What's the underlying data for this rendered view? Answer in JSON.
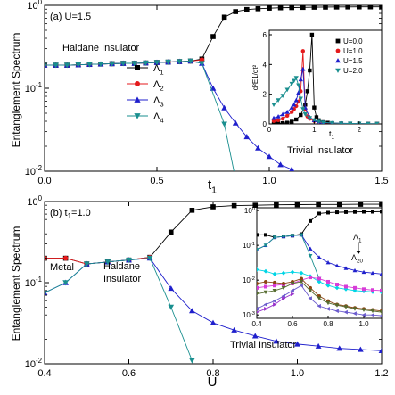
{
  "figure": {
    "ylabel": "Entanglement Spectrum"
  },
  "chart_data": [
    {
      "type": "line",
      "panel_label": "(a) U=1.5",
      "xlabel": "t",
      "xlabel_sub": "1",
      "ylabel": "Entanglement Spectrum",
      "yscale": "log",
      "xlim": [
        0.0,
        1.5
      ],
      "ylim": [
        0.01,
        1.0
      ],
      "xticks": [
        "0.0",
        "0.5",
        "1.0",
        "1.5"
      ],
      "yticks": [
        "10-2",
        "10-1",
        "100"
      ],
      "legend_position": "center",
      "region_labels": [
        "Haldane Insulator",
        "Trivial Insulator"
      ],
      "series": [
        {
          "name": "Λ1",
          "marker": "square",
          "color": "#000000",
          "x": [
            0.0,
            0.05,
            0.1,
            0.15,
            0.2,
            0.25,
            0.3,
            0.35,
            0.4,
            0.45,
            0.5,
            0.55,
            0.6,
            0.65,
            0.7,
            0.75,
            0.8,
            0.85,
            0.9,
            0.95,
            1.0,
            1.05,
            1.1,
            1.15,
            1.2,
            1.25,
            1.3,
            1.35,
            1.4,
            1.45,
            1.5
          ],
          "y": [
            0.19,
            0.19,
            0.19,
            0.192,
            0.194,
            0.196,
            0.198,
            0.2,
            0.2,
            0.202,
            0.205,
            0.207,
            0.21,
            0.213,
            0.225,
            0.42,
            0.72,
            0.84,
            0.89,
            0.91,
            0.925,
            0.935,
            0.94,
            0.945,
            0.95,
            0.952,
            0.955,
            0.957,
            0.958,
            0.959,
            0.96
          ]
        },
        {
          "name": "Λ2",
          "marker": "circle",
          "color": "#e41a1c",
          "x": [
            0.0,
            0.05,
            0.1,
            0.15,
            0.2,
            0.25,
            0.3,
            0.35,
            0.4,
            0.45,
            0.5,
            0.55,
            0.6,
            0.65,
            0.7
          ],
          "y": [
            0.19,
            0.19,
            0.19,
            0.192,
            0.194,
            0.196,
            0.198,
            0.2,
            0.2,
            0.202,
            0.205,
            0.207,
            0.21,
            0.213,
            0.22
          ]
        },
        {
          "name": "Λ3",
          "marker": "triangle-up",
          "color": "#1f1fcc",
          "x": [
            0.0,
            0.05,
            0.1,
            0.15,
            0.2,
            0.25,
            0.3,
            0.35,
            0.4,
            0.45,
            0.5,
            0.55,
            0.6,
            0.65,
            0.7,
            0.75,
            0.8,
            0.85,
            0.9,
            0.95,
            1.0,
            1.05,
            1.1
          ],
          "y": [
            0.19,
            0.19,
            0.19,
            0.192,
            0.194,
            0.196,
            0.198,
            0.2,
            0.2,
            0.202,
            0.205,
            0.207,
            0.21,
            0.213,
            0.2,
            0.1,
            0.058,
            0.038,
            0.026,
            0.019,
            0.015,
            0.012,
            0.0105
          ]
        },
        {
          "name": "Λ4",
          "marker": "triangle-down",
          "color": "#1a8f8f",
          "x": [
            0.0,
            0.05,
            0.1,
            0.15,
            0.2,
            0.25,
            0.3,
            0.35,
            0.4,
            0.45,
            0.5,
            0.55,
            0.6,
            0.65,
            0.7,
            0.8,
            0.85
          ],
          "y": [
            0.19,
            0.19,
            0.19,
            0.192,
            0.194,
            0.196,
            0.198,
            0.2,
            0.2,
            0.202,
            0.205,
            0.207,
            0.21,
            0.213,
            0.2,
            0.037,
            0.008
          ]
        }
      ],
      "inset": {
        "type": "line",
        "xlim": [
          0,
          2.5
        ],
        "ylim": [
          0,
          6.3
        ],
        "xticks": [
          "0",
          "1",
          "2"
        ],
        "yticks": [
          "0",
          "2",
          "4",
          "6"
        ],
        "xlabel": "t",
        "xlabel_sub": "1",
        "ylabel": "d²E1/dt²",
        "series": [
          {
            "name": "U=0.0",
            "marker": "square",
            "color": "#000000",
            "x": [
              0.1,
              0.2,
              0.3,
              0.4,
              0.5,
              0.6,
              0.7,
              0.8,
              0.85,
              0.9,
              0.95,
              1.0,
              1.05,
              1.1,
              1.2,
              1.3,
              1.4,
              1.6,
              1.8,
              2.0,
              2.2,
              2.4
            ],
            "y": [
              0.02,
              0.03,
              0.05,
              0.08,
              0.15,
              0.3,
              0.6,
              1.3,
              2.2,
              3.6,
              6.0,
              1.1,
              0.45,
              0.25,
              0.12,
              0.08,
              0.05,
              0.03,
              0.02,
              0.015,
              0.01,
              0.01
            ]
          },
          {
            "name": "U=1.0",
            "marker": "circle",
            "color": "#e41a1c",
            "x": [
              0.1,
              0.2,
              0.3,
              0.4,
              0.5,
              0.55,
              0.6,
              0.65,
              0.7,
              0.75,
              0.8,
              0.85,
              0.9,
              1.0,
              1.1,
              1.2,
              1.4,
              1.6,
              1.8,
              2.0,
              2.2,
              2.4
            ],
            "y": [
              0.2,
              0.25,
              0.35,
              0.55,
              0.8,
              1.0,
              1.2,
              1.5,
              2.2,
              4.9,
              1.0,
              0.5,
              0.35,
              0.2,
              0.12,
              0.08,
              0.05,
              0.03,
              0.02,
              0.02,
              0.01,
              0.01
            ]
          },
          {
            "name": "U=1.5",
            "marker": "triangle-up",
            "color": "#1f1fcc",
            "x": [
              0.1,
              0.2,
              0.3,
              0.4,
              0.5,
              0.55,
              0.6,
              0.65,
              0.7,
              0.75,
              0.8,
              0.9,
              1.0,
              1.1,
              1.2,
              1.4,
              1.6,
              1.8,
              2.0,
              2.2,
              2.4
            ],
            "y": [
              0.4,
              0.5,
              0.65,
              0.8,
              1.1,
              1.3,
              1.6,
              2.1,
              3.0,
              3.7,
              1.1,
              0.45,
              0.25,
              0.15,
              0.1,
              0.06,
              0.04,
              0.03,
              0.02,
              0.01,
              0.01
            ]
          },
          {
            "name": "U=2.0",
            "marker": "triangle-down",
            "color": "#1a8f8f",
            "x": [
              0.1,
              0.2,
              0.3,
              0.4,
              0.5,
              0.55,
              0.6,
              0.65,
              0.7,
              0.75,
              0.8,
              0.9,
              1.0,
              1.1,
              1.2,
              1.4,
              1.6,
              1.8,
              2.0,
              2.2,
              2.4
            ],
            "y": [
              1.3,
              1.6,
              1.9,
              2.3,
              2.7,
              2.9,
              3.1,
              2.6,
              1.7,
              1.0,
              0.65,
              0.4,
              0.25,
              0.15,
              0.1,
              0.06,
              0.04,
              0.03,
              0.02,
              0.01,
              0.01
            ]
          }
        ]
      }
    },
    {
      "type": "line",
      "panel_label": "(b) t1=1.0",
      "xlabel": "U",
      "ylabel": "Entanglement Spectrum",
      "yscale": "log",
      "xlim": [
        0.4,
        1.2
      ],
      "ylim": [
        0.01,
        1.0
      ],
      "xticks": [
        "0.4",
        "0.6",
        "0.8",
        "1.0",
        "1.2"
      ],
      "yticks": [
        "10-2",
        "10-1",
        "100"
      ],
      "region_labels": [
        "Metal",
        "Haldane",
        "Insulator",
        "Trivial Insulator"
      ],
      "series": [
        {
          "name": "Λ1",
          "marker": "square",
          "color": "#000000",
          "x": [
            0.4,
            0.45,
            0.5,
            0.55,
            0.6,
            0.65,
            0.7,
            0.75,
            0.8,
            0.85,
            0.9,
            0.95,
            1.0,
            1.05,
            1.1,
            1.15,
            1.2
          ],
          "y": [
            0.2,
            0.2,
            0.17,
            0.18,
            0.19,
            0.205,
            0.42,
            0.78,
            0.86,
            0.89,
            0.9,
            0.91,
            0.915,
            0.92,
            0.92,
            0.925,
            0.925
          ]
        },
        {
          "name": "Λ2",
          "marker": "circle",
          "color": "#e41a1c",
          "x": [
            0.4,
            0.45,
            0.5,
            0.55,
            0.6,
            0.65
          ],
          "y": [
            0.2,
            0.2,
            0.17,
            0.18,
            0.19,
            0.205
          ]
        },
        {
          "name": "Λ3",
          "marker": "triangle-up",
          "color": "#1f1fcc",
          "x": [
            0.4,
            0.45,
            0.5,
            0.55,
            0.6,
            0.65,
            0.7,
            0.75,
            0.8,
            0.85,
            0.9,
            0.95,
            1.0,
            1.05,
            1.1,
            1.15,
            1.2
          ],
          "y": [
            0.075,
            0.1,
            0.17,
            0.18,
            0.19,
            0.2,
            0.085,
            0.045,
            0.032,
            0.026,
            0.022,
            0.019,
            0.0175,
            0.0165,
            0.0155,
            0.015,
            0.0145
          ]
        },
        {
          "name": "Λ4",
          "marker": "triangle-down",
          "color": "#1a8f8f",
          "x": [
            0.4,
            0.45,
            0.5,
            0.55,
            0.6,
            0.65,
            0.7,
            0.75
          ],
          "y": [
            0.075,
            0.1,
            0.17,
            0.18,
            0.19,
            0.2,
            0.05,
            0.011
          ]
        }
      ],
      "inset": {
        "type": "line",
        "xlim": [
          0.4,
          1.1
        ],
        "ylim": [
          0.0008,
          1.2
        ],
        "yscale": "log",
        "xticks": [
          "0.4",
          "0.6",
          "0.8",
          "1.0"
        ],
        "yticks": [
          "10-3",
          "10-2",
          "10-1",
          "100"
        ],
        "annotations": [
          "Λ1",
          "Λ20"
        ],
        "series": [
          {
            "marker": "square",
            "color": "#000000",
            "x": [
              0.4,
              0.45,
              0.5,
              0.55,
              0.6,
              0.65,
              0.7,
              0.75,
              0.8,
              0.85,
              0.9,
              0.95,
              1.0,
              1.05,
              1.1
            ],
            "y": [
              0.2,
              0.2,
              0.17,
              0.18,
              0.19,
              0.21,
              0.5,
              0.82,
              0.87,
              0.89,
              0.9,
              0.91,
              0.92,
              0.92,
              0.93
            ]
          },
          {
            "marker": "triangle-up",
            "color": "#1f1fcc",
            "x": [
              0.4,
              0.45,
              0.5,
              0.55,
              0.6,
              0.65,
              0.7,
              0.75,
              0.8,
              0.85,
              0.9,
              0.95,
              1.0,
              1.05,
              1.1
            ],
            "y": [
              0.075,
              0.1,
              0.17,
              0.18,
              0.19,
              0.2,
              0.08,
              0.045,
              0.032,
              0.026,
              0.022,
              0.019,
              0.017,
              0.016,
              0.015
            ]
          },
          {
            "marker": "triangle-down",
            "color": "#1a8f8f",
            "x": [
              0.4,
              0.45,
              0.5,
              0.55,
              0.6,
              0.65,
              0.7,
              0.75
            ],
            "y": [
              0.075,
              0.1,
              0.17,
              0.18,
              0.19,
              0.2,
              0.05,
              0.011
            ]
          },
          {
            "marker": "diamond",
            "color": "#00d5e5",
            "x": [
              0.4,
              0.45,
              0.5,
              0.55,
              0.6,
              0.65,
              0.7,
              0.75,
              0.8,
              0.85,
              0.9,
              0.95,
              1.0,
              1.05,
              1.1
            ],
            "y": [
              0.02,
              0.018,
              0.015,
              0.016,
              0.017,
              0.016,
              0.013,
              0.009,
              0.007,
              0.006,
              0.0055,
              0.005,
              0.0048,
              0.0046,
              0.0045
            ]
          },
          {
            "marker": "square",
            "color": "#d83bd8",
            "x": [
              0.4,
              0.45,
              0.5,
              0.55,
              0.6,
              0.65,
              0.7,
              0.75,
              0.8,
              0.85,
              0.9,
              0.95,
              1.0,
              1.05,
              1.1
            ],
            "y": [
              0.006,
              0.0065,
              0.007,
              0.0075,
              0.008,
              0.01,
              0.012,
              0.011,
              0.009,
              0.0075,
              0.0065,
              0.006,
              0.0055,
              0.0052,
              0.005
            ]
          },
          {
            "marker": "circle",
            "color": "#8b4513",
            "x": [
              0.4,
              0.45,
              0.5,
              0.55,
              0.6,
              0.65,
              0.7,
              0.75,
              0.8,
              0.85,
              0.9,
              0.95,
              1.0,
              1.05,
              1.1
            ],
            "y": [
              0.008,
              0.009,
              0.0085,
              0.008,
              0.009,
              0.011,
              0.006,
              0.0035,
              0.0025,
              0.002,
              0.0018,
              0.0016,
              0.0015,
              0.0014,
              0.0013
            ]
          },
          {
            "marker": "triangle-down",
            "color": "#556b2f",
            "x": [
              0.4,
              0.45,
              0.5,
              0.55,
              0.6,
              0.65,
              0.7,
              0.75,
              0.8,
              0.85,
              0.9,
              0.95,
              1.0,
              1.05,
              1.1
            ],
            "y": [
              0.004,
              0.0045,
              0.005,
              0.006,
              0.008,
              0.009,
              0.005,
              0.003,
              0.0022,
              0.0019,
              0.0017,
              0.0015,
              0.0014,
              0.0013,
              0.0012
            ]
          },
          {
            "marker": "triangle-left",
            "color": "#6a5acd",
            "x": [
              0.4,
              0.45,
              0.5,
              0.55,
              0.6,
              0.65,
              0.7,
              0.75,
              0.8,
              0.85,
              0.9,
              0.95,
              1.0,
              1.05,
              1.1
            ],
            "y": [
              0.0015,
              0.002,
              0.0025,
              0.0035,
              0.005,
              0.007,
              0.003,
              0.0018,
              0.0015,
              0.0013,
              0.0012,
              0.0011,
              0.001,
              0.001,
              0.00095
            ]
          },
          {
            "marker": "triangle-right",
            "color": "#9932cc",
            "x": [
              0.4,
              0.45,
              0.5,
              0.55,
              0.6
            ],
            "y": [
              0.0012,
              0.0015,
              0.002,
              0.003,
              0.004
            ]
          }
        ]
      }
    }
  ]
}
